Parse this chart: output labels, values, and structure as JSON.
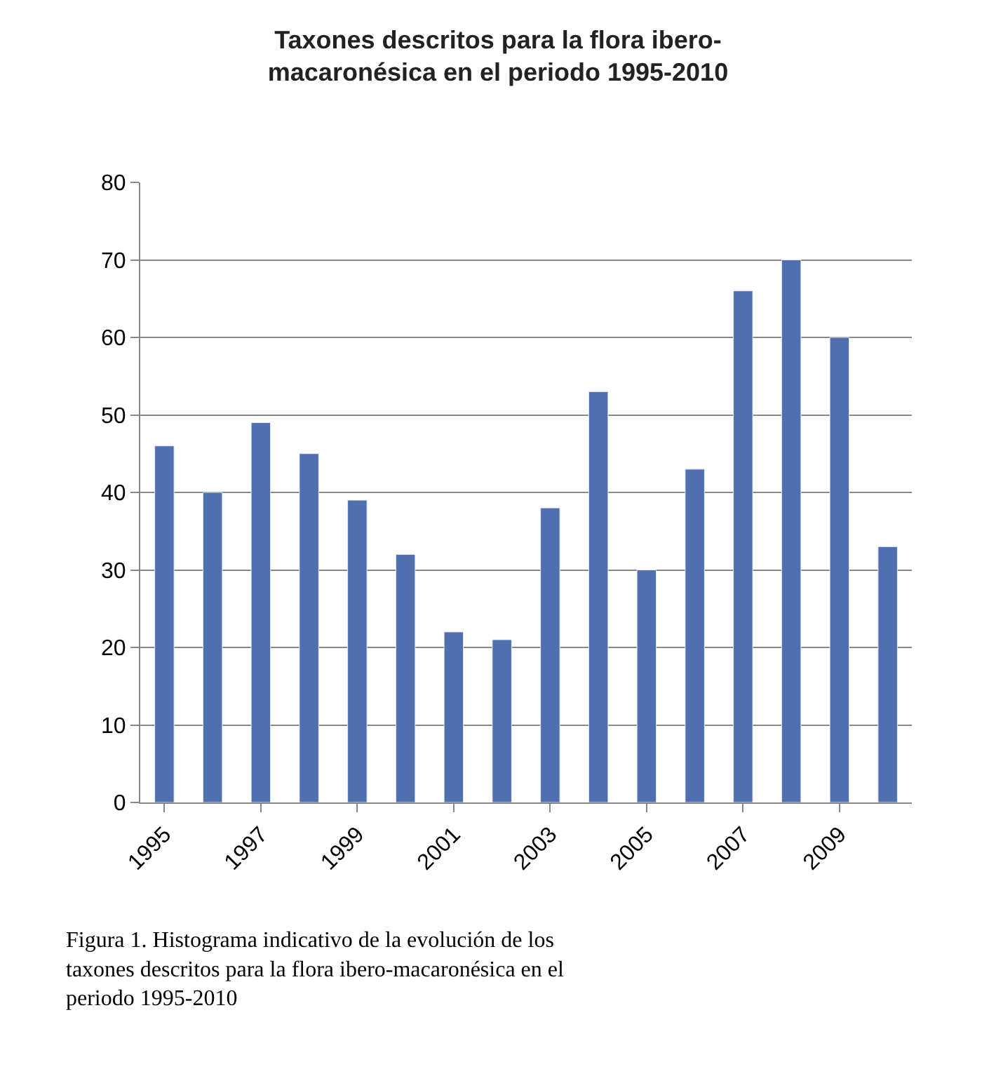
{
  "chart_data": {
    "type": "bar",
    "title": "Taxones descritos para la flora ibero-\nmacaronésica en el periodo 1995-2010",
    "categories": [
      "1995",
      null,
      "1997",
      null,
      "1999",
      null,
      "2001",
      null,
      "2003",
      null,
      "2005",
      null,
      "2007",
      null,
      "2009",
      null
    ],
    "values": [
      46,
      40,
      49,
      45,
      39,
      32,
      22,
      21,
      38,
      53,
      30,
      43,
      66,
      70,
      60,
      33
    ],
    "color": "#4f6fae",
    "ylim": [
      0,
      80
    ],
    "yticks": [
      0,
      10,
      20,
      30,
      40,
      50,
      60,
      70,
      80
    ],
    "grid": "y",
    "annotations": [
      "Figura 1. Histograma indicativo de la evolución de los\ntaxones descritos para la flora ibero-macaronésica en el\nperiodo 1995-2010"
    ]
  }
}
